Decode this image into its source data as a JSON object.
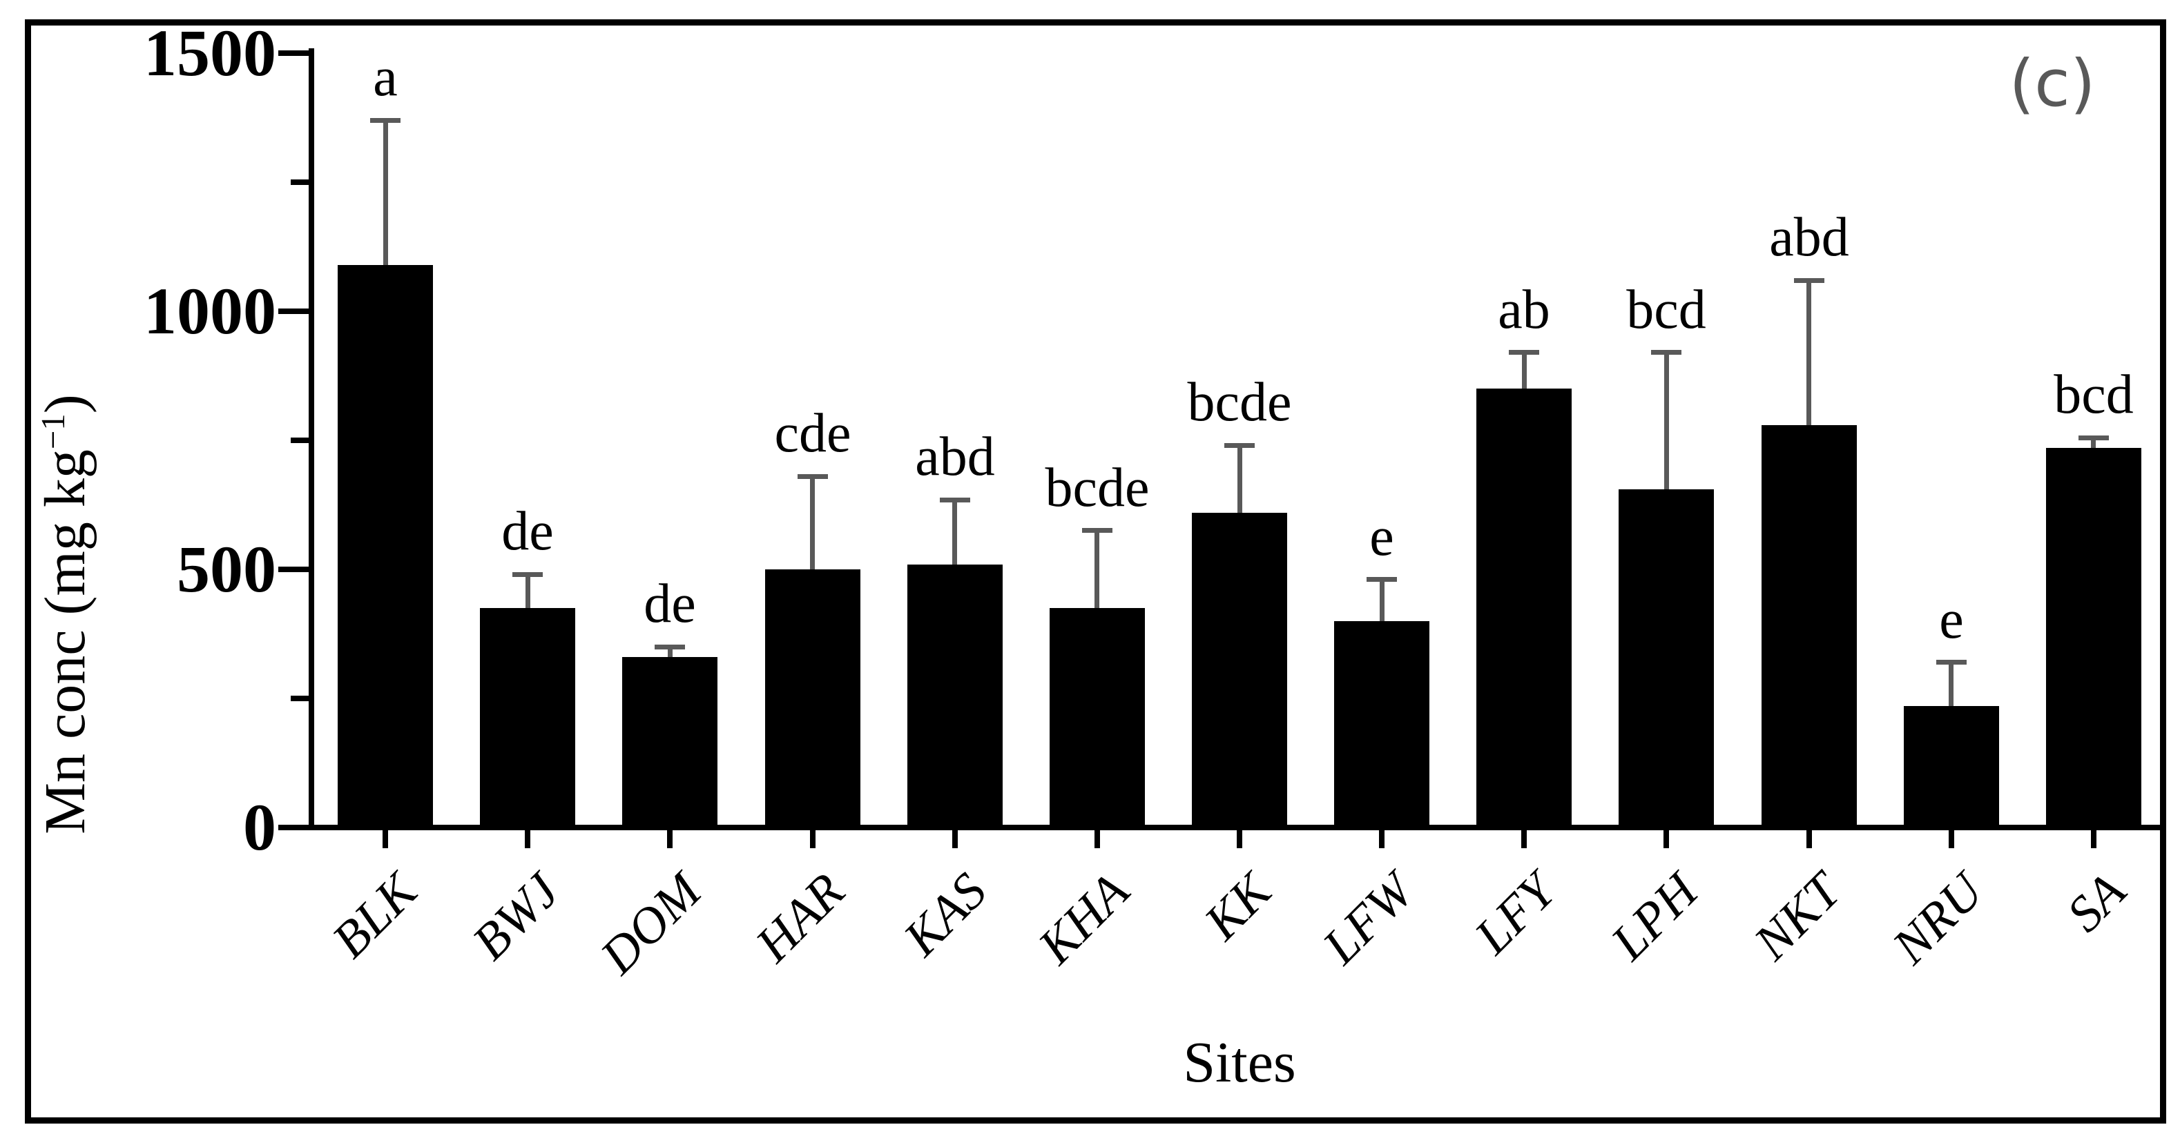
{
  "figure": {
    "panel_label": "(c)",
    "background": "#ffffff",
    "frame_color": "#000000"
  },
  "chart_data": {
    "type": "bar",
    "title": "",
    "panel_label": "(c)",
    "xlabel": "Sites",
    "ylabel_full": "Mn conc (mg kg−1)",
    "ylabel_main": "Mn conc (mg kg",
    "ylabel_sup": "−1",
    "ylabel_close": ")",
    "ylim": [
      0,
      1500
    ],
    "yticks_major": [
      1500,
      1000,
      500,
      0
    ],
    "yticks_minor": [
      1250,
      750,
      250
    ],
    "grid": false,
    "legend": false,
    "categories": [
      "BLK",
      "BWJ",
      "DOM",
      "HAR",
      "KAS",
      "KHA",
      "KK",
      "LFW",
      "LFY",
      "LPH",
      "NKT",
      "NRU",
      "SA"
    ],
    "series": [
      {
        "name": "Mn conc (mg kg−1)",
        "values": [
          1090,
          425,
          330,
          500,
          510,
          425,
          610,
          400,
          850,
          655,
          780,
          235,
          735
        ],
        "errors_up": [
          280,
          65,
          20,
          180,
          125,
          150,
          130,
          80,
          70,
          265,
          280,
          85,
          20
        ]
      }
    ],
    "sig_letters": [
      "a",
      "de",
      "de",
      "cde",
      "abd",
      "bcde",
      "bcde",
      "e",
      "ab",
      "bcd",
      "abd",
      "e",
      "bcd"
    ],
    "colors": {
      "bar": "#000000",
      "error_bar": "#595959",
      "axis": "#000000",
      "text": "#000000",
      "panel_label": "#595959"
    }
  }
}
